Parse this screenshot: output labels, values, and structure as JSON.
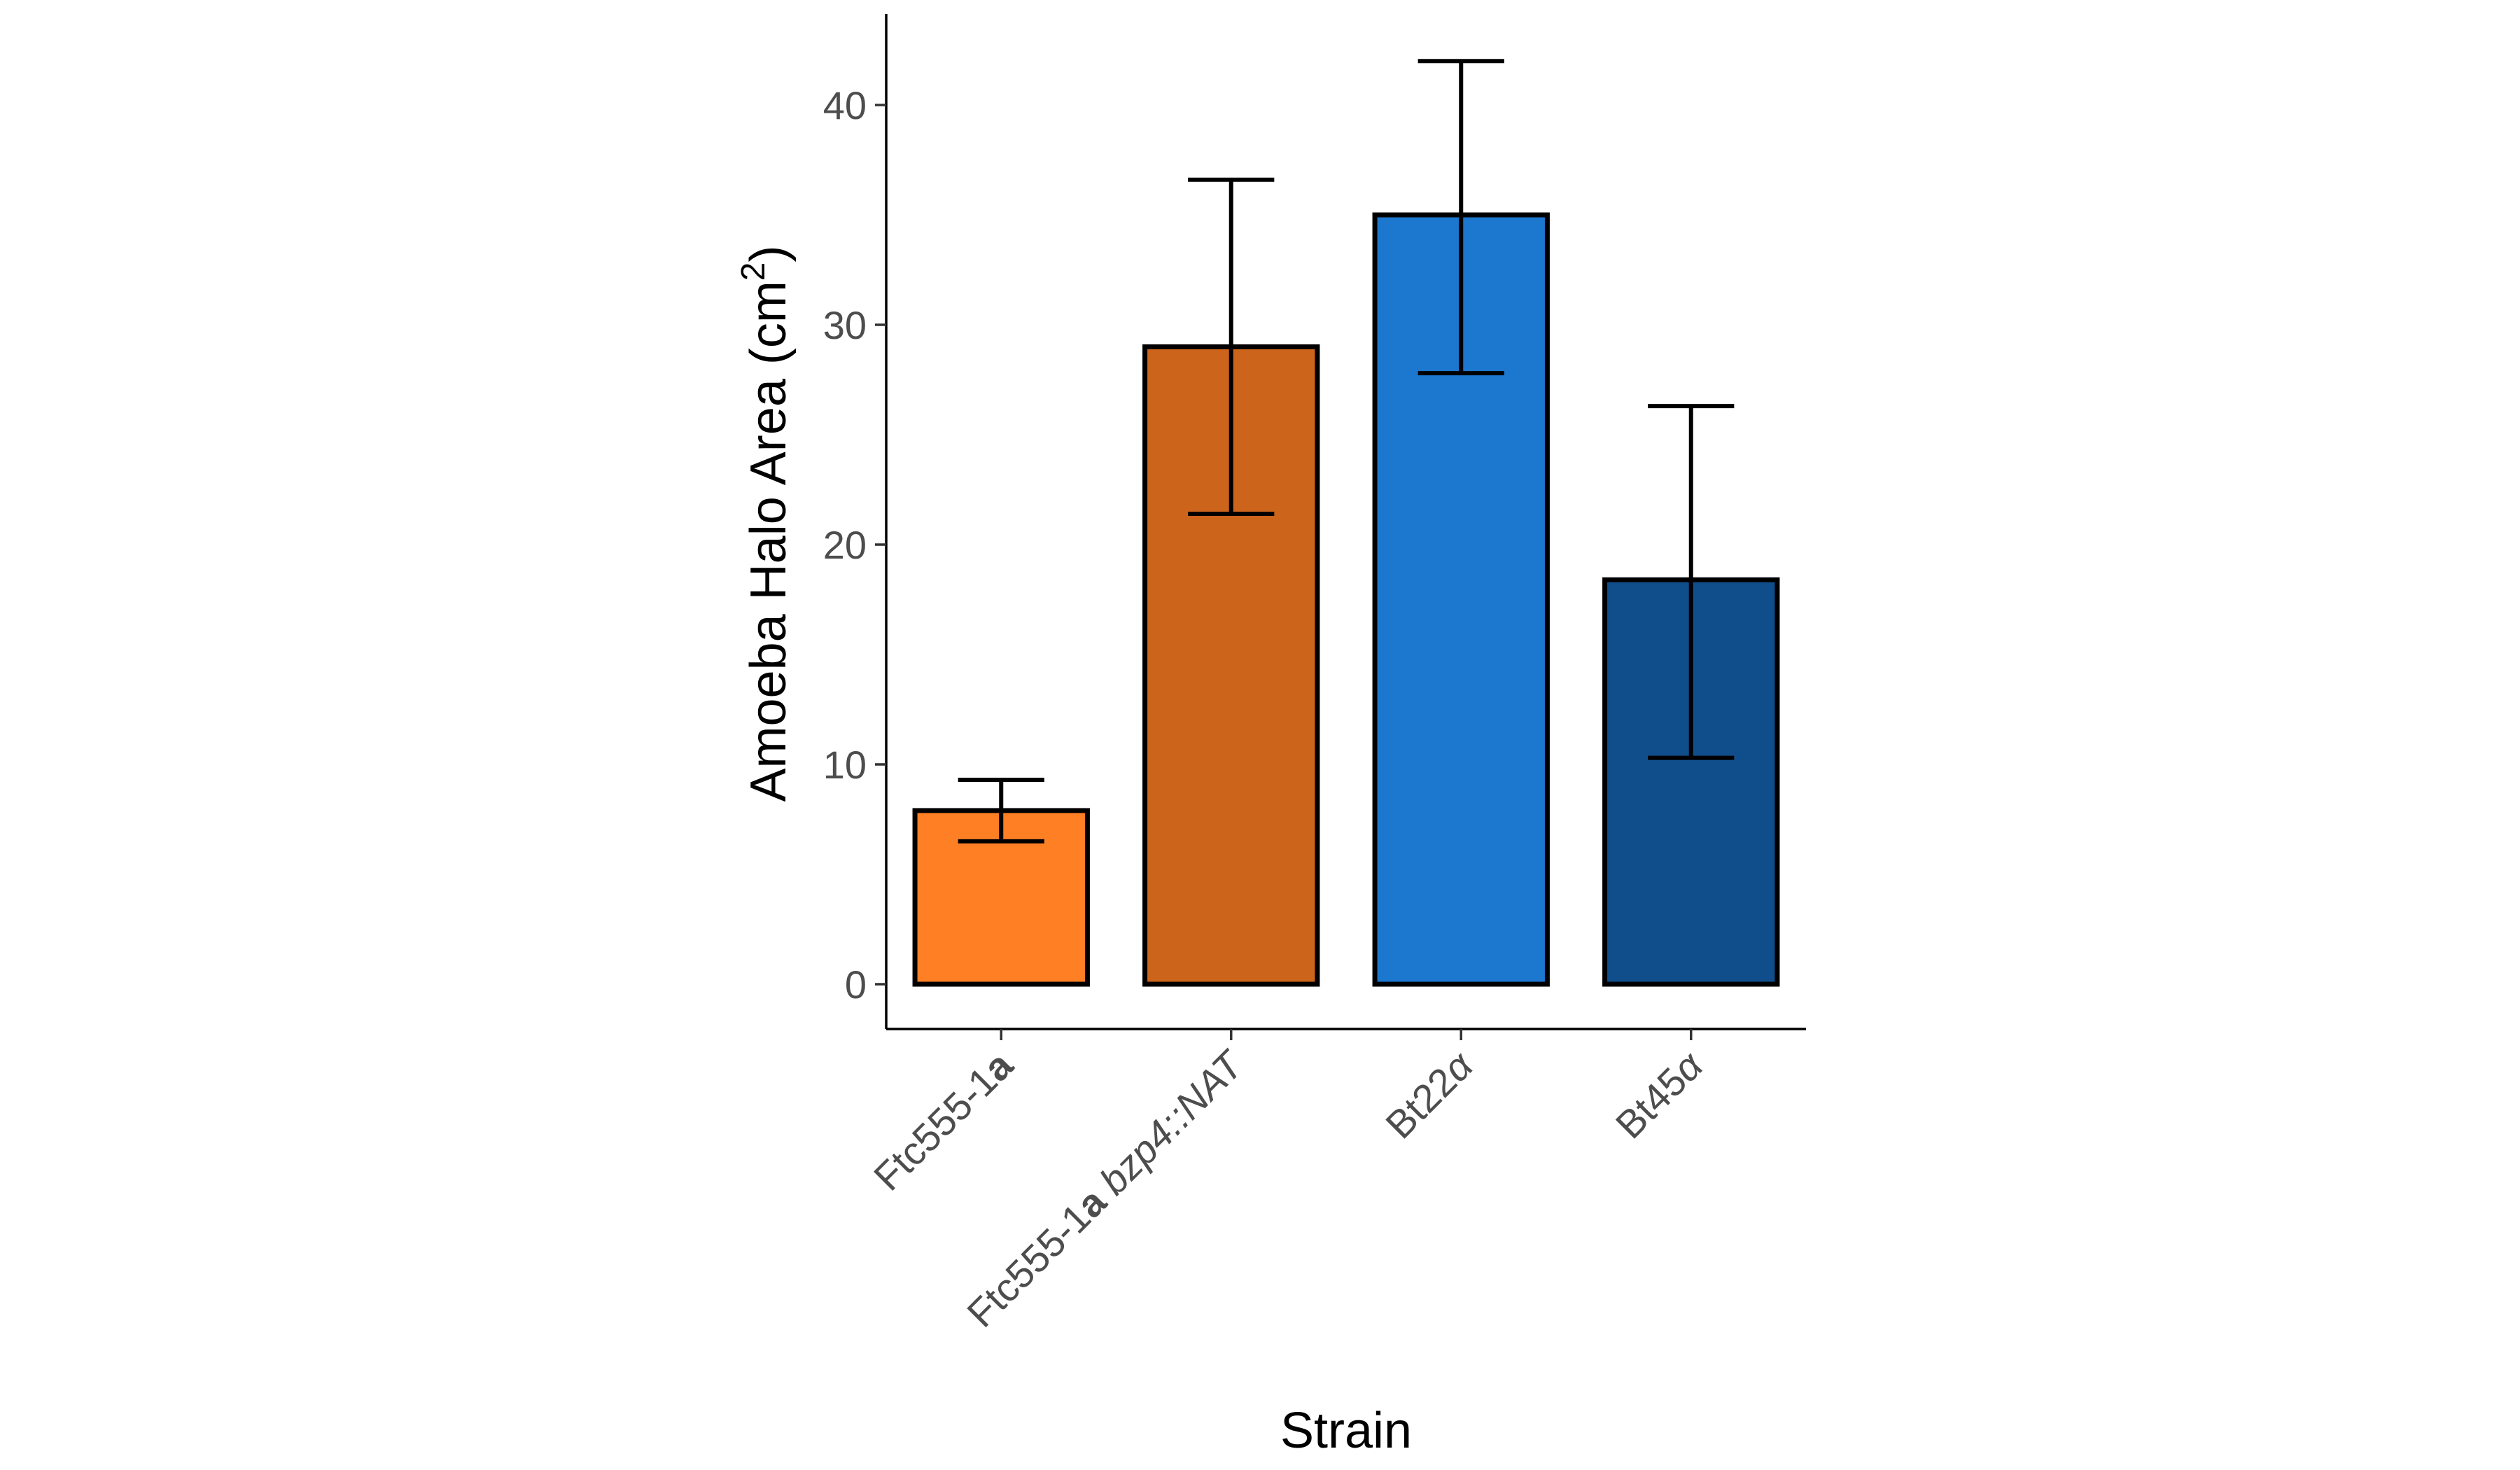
{
  "chart_data": {
    "type": "bar",
    "title": "",
    "xlabel": "Strain",
    "ylabel": "Amoeba Halo Area (cm",
    "ylabel_sup": "2",
    "ylabel_close": ")",
    "ylim": [
      0,
      44
    ],
    "yticks": [
      0,
      10,
      20,
      30,
      40
    ],
    "ytick_labels": [
      "0",
      "10",
      "20",
      "30",
      "40"
    ],
    "grid": false,
    "legend": "none",
    "categories": [
      {
        "parts": [
          {
            "text": "Ftc555-1",
            "style": "normal"
          },
          {
            "text": "a",
            "style": "bold"
          }
        ]
      },
      {
        "parts": [
          {
            "text": "Ftc555-1",
            "style": "normal"
          },
          {
            "text": "a",
            "style": "bold"
          },
          {
            "text": " ",
            "style": "normal"
          },
          {
            "text": "bzp4::NAT",
            "style": "italic"
          }
        ]
      },
      {
        "parts": [
          {
            "text": "Bt22",
            "style": "normal"
          },
          {
            "text": "α",
            "style": "italic"
          }
        ]
      },
      {
        "parts": [
          {
            "text": "Bt45",
            "style": "normal"
          },
          {
            "text": "α",
            "style": "italic"
          }
        ]
      }
    ],
    "values": [
      7.9,
      29.0,
      35.0,
      18.4
    ],
    "error_low": [
      6.5,
      21.4,
      27.8,
      10.3
    ],
    "error_high": [
      9.3,
      36.6,
      42.0,
      26.3
    ],
    "colors": [
      "#ff7f24",
      "#cc651b",
      "#1c77cf",
      "#104e8b"
    ]
  }
}
